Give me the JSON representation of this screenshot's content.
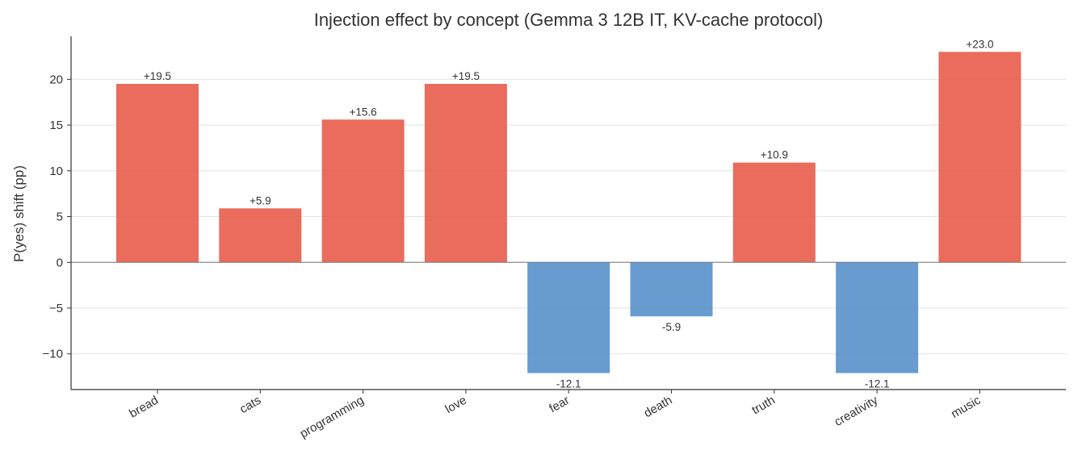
{
  "chart_data": {
    "type": "bar",
    "title": "Injection effect by concept (Gemma 3 12B IT, KV-cache protocol)",
    "xlabel": "",
    "ylabel": "P(yes) shift (pp)",
    "categories": [
      "bread",
      "cats",
      "programming",
      "love",
      "fear",
      "death",
      "truth",
      "creativity",
      "music"
    ],
    "values": [
      19.5,
      5.9,
      15.6,
      19.5,
      -12.1,
      -5.9,
      10.9,
      -12.1,
      23.0
    ],
    "data_labels": [
      "+19.5",
      "+5.9",
      "+15.6",
      "+19.5",
      "-12.1",
      "-5.9",
      "+10.9",
      "-12.1",
      "+23.0"
    ],
    "ylim": [
      -13.9,
      24.7
    ],
    "yticks": [
      -10,
      -5,
      0,
      5,
      10,
      15,
      20
    ],
    "ytick_labels": [
      "−10",
      "−5",
      "0",
      "5",
      "10",
      "15",
      "20"
    ],
    "grid": true,
    "colors": {
      "positive": "#e8604e",
      "negative": "#5b93cc"
    }
  }
}
